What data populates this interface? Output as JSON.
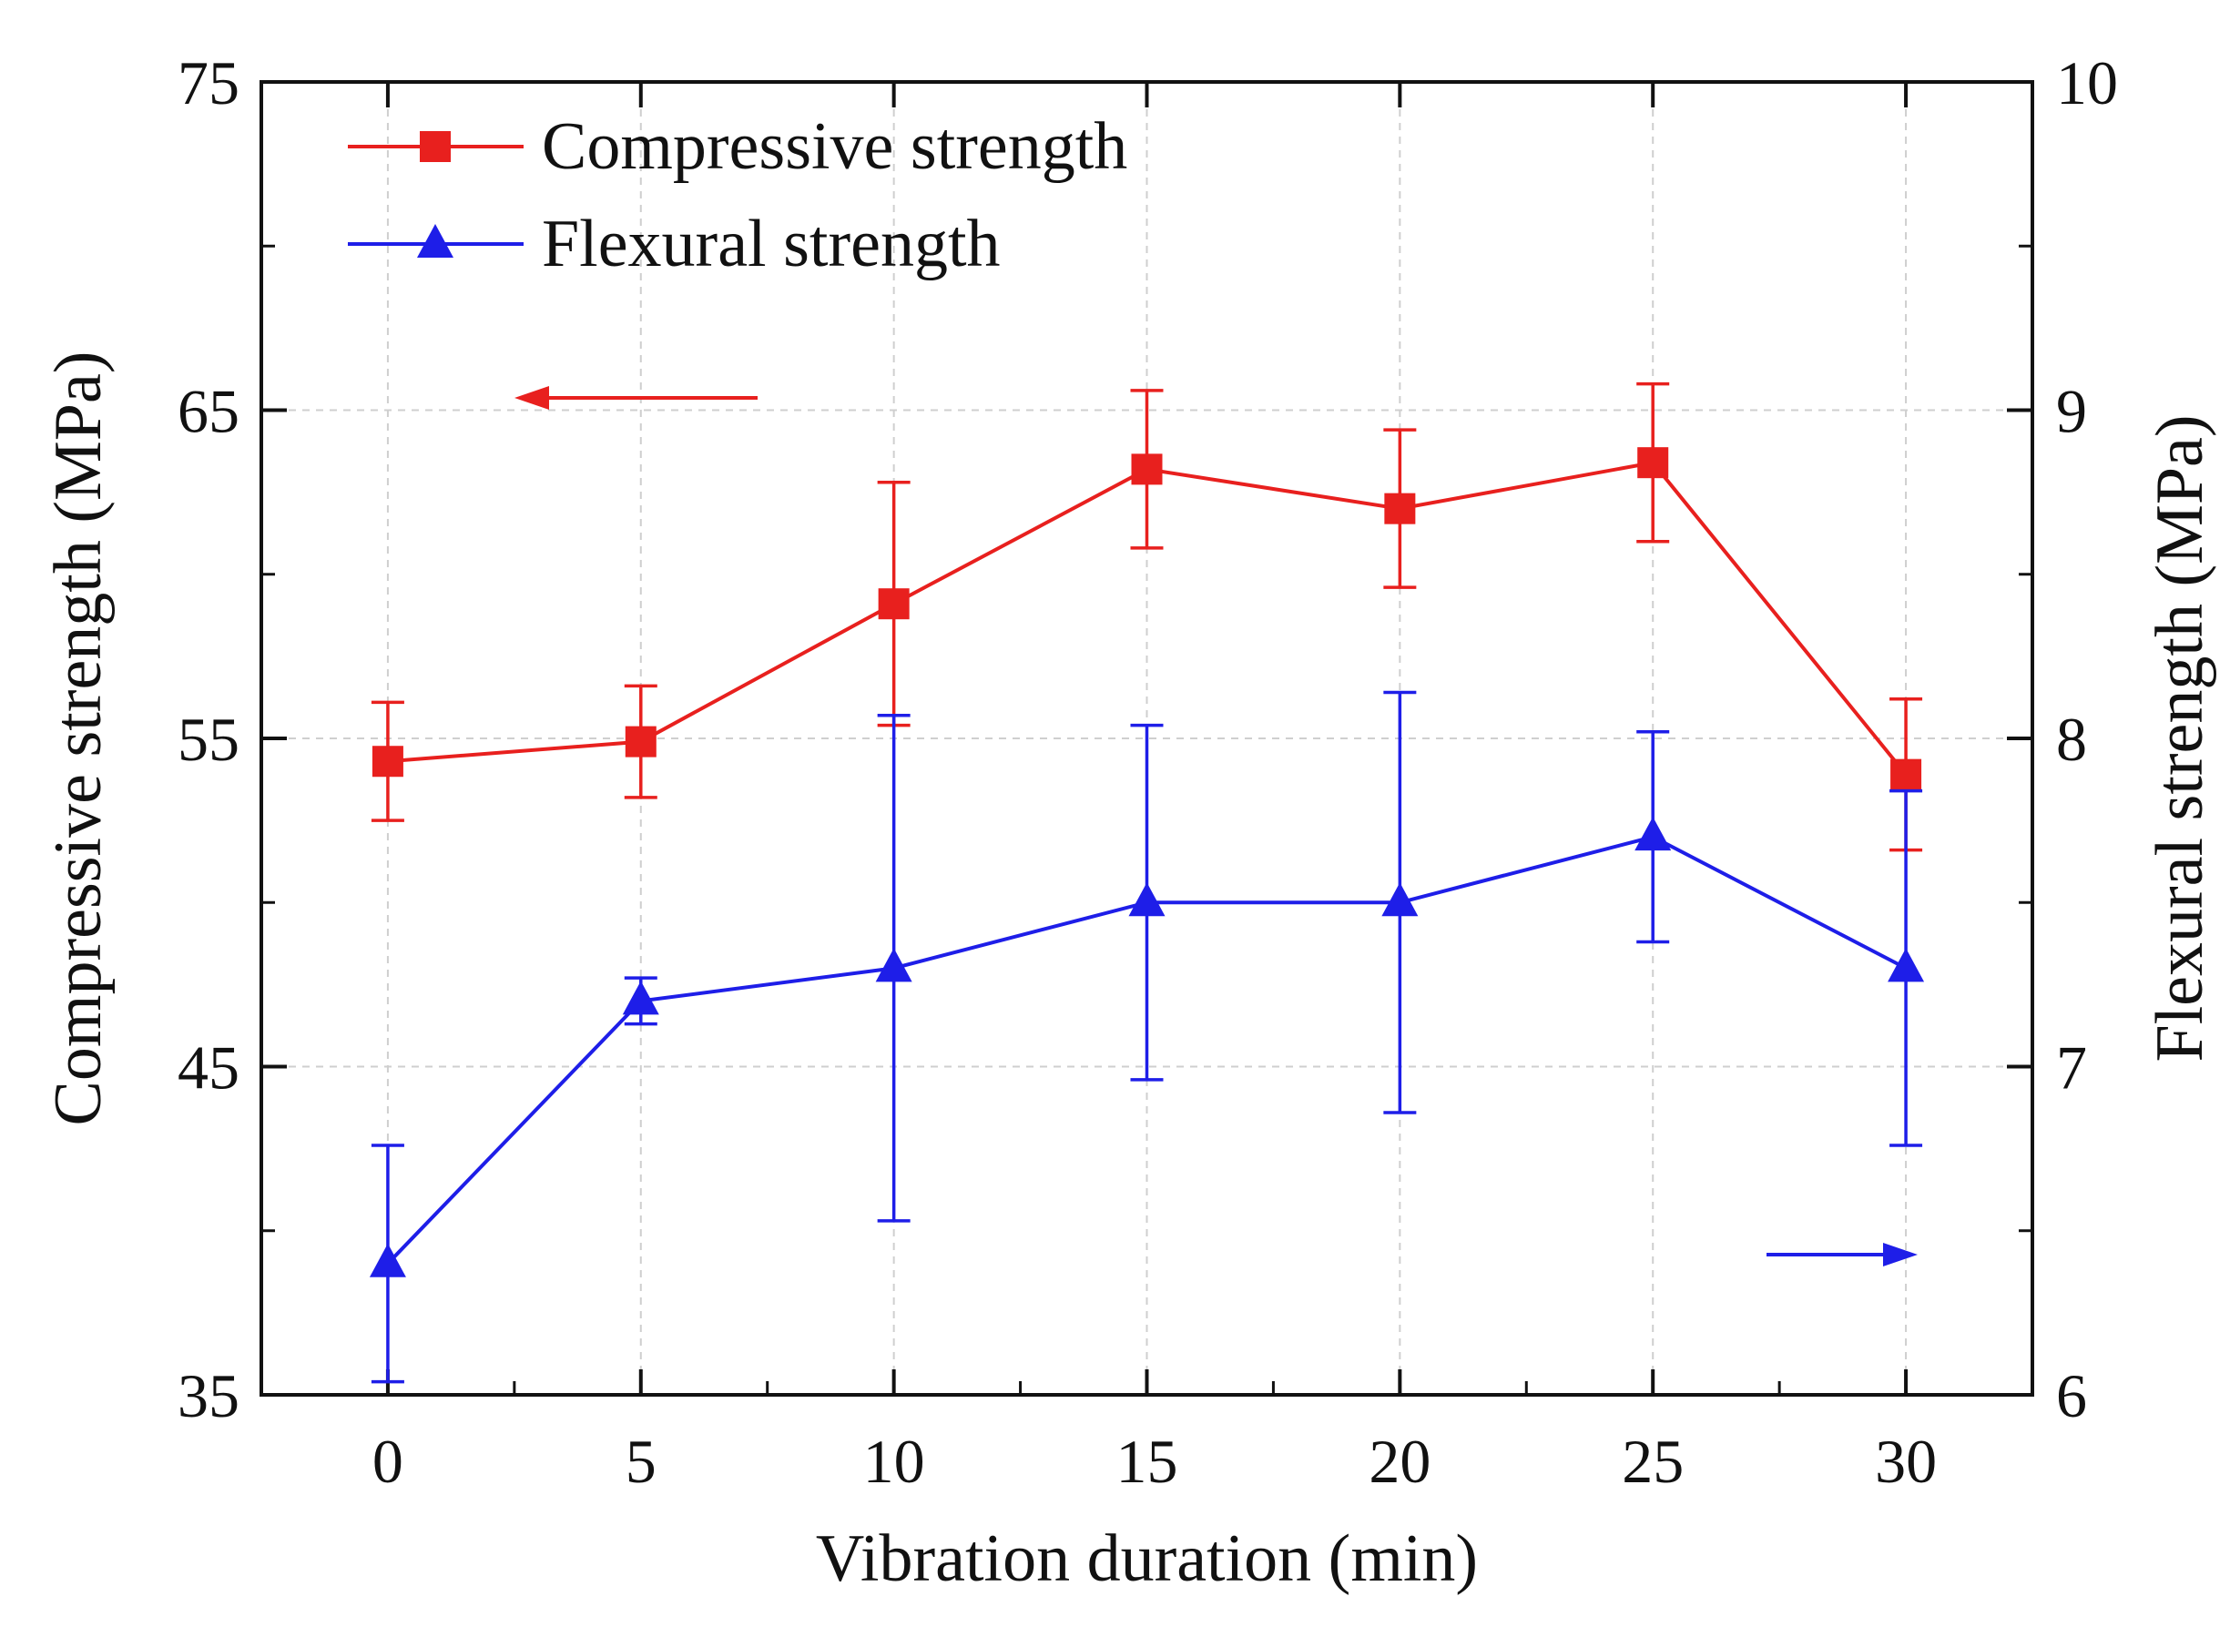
{
  "chart_data": {
    "type": "line",
    "title": "",
    "xlabel": "Vibration duration (min)",
    "ylabel": "Compressive strength (MPa)",
    "y2label": "Flexural strength (MPa)",
    "x": [
      0,
      5,
      10,
      15,
      20,
      25,
      30
    ],
    "xlim": [
      -2.5,
      32.5
    ],
    "ylim": [
      35,
      75
    ],
    "y2lim": [
      6,
      10
    ],
    "xticks": [
      0,
      5,
      10,
      15,
      20,
      25,
      30
    ],
    "yticks": [
      35,
      45,
      55,
      65,
      75
    ],
    "y2ticks": [
      6,
      7,
      8,
      9,
      10
    ],
    "xtick_labels": [
      "0",
      "5",
      "10",
      "15",
      "20",
      "25",
      "30"
    ],
    "ytick_labels": [
      "35",
      "45",
      "55",
      "65",
      "75"
    ],
    "y2tick_labels": [
      "6",
      "7",
      "8",
      "9",
      "10"
    ],
    "grid": true,
    "legend_position": "top-left",
    "series": [
      {
        "name": "Compressive strength",
        "axis": "left",
        "color": "#e8201e",
        "marker": "square",
        "values": [
          54.3,
          54.9,
          59.1,
          63.2,
          62.0,
          63.4,
          53.9
        ],
        "error": [
          1.8,
          1.7,
          3.7,
          2.4,
          2.4,
          2.4,
          2.3
        ]
      },
      {
        "name": "Flexural strength",
        "axis": "right",
        "color": "#1e1ee8",
        "marker": "triangle",
        "values": [
          6.4,
          7.2,
          7.3,
          7.5,
          7.5,
          7.7,
          7.3
        ],
        "error": [
          0.36,
          0.07,
          0.77,
          0.54,
          0.64,
          0.32,
          0.54
        ]
      }
    ],
    "annotations": [
      {
        "type": "arrow",
        "direction": "left",
        "meaning": "compressive strength on left axis",
        "color": "#e8201e"
      },
      {
        "type": "arrow",
        "direction": "right",
        "meaning": "flexural strength on right axis",
        "color": "#1e1ee8"
      }
    ]
  }
}
